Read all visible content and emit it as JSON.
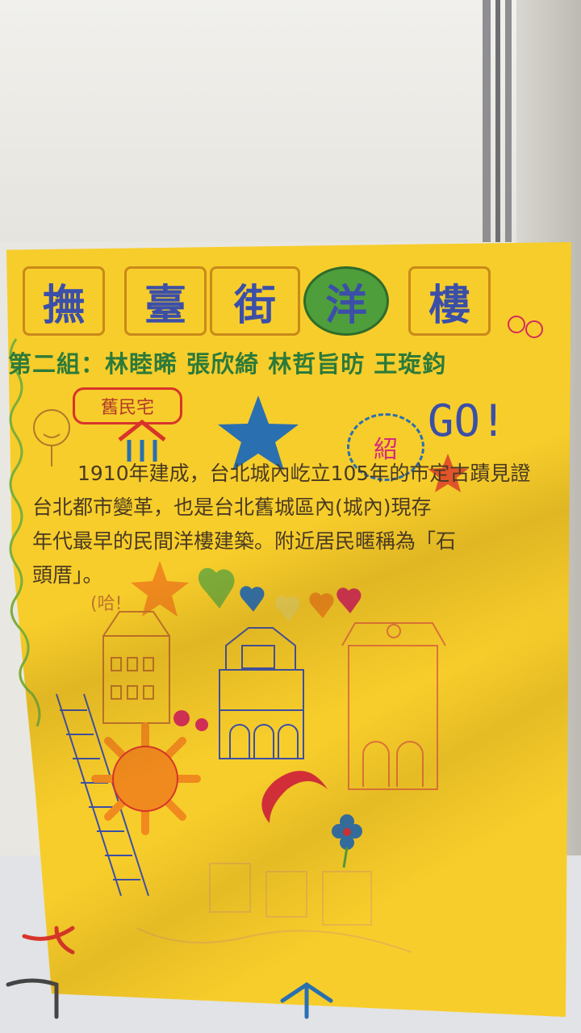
{
  "poster": {
    "title_chars": [
      "撫",
      "臺",
      "街",
      "洋",
      "樓"
    ],
    "group_line": "第二組：林睦晞 張欣綺 林哲旨昉 王琁鈞",
    "tag": "舊民宅",
    "cloud_label": "紹",
    "go_text": "GO!",
    "ha_label": "(哈!",
    "body_lines": [
      "1910年建成，台北城內屹立105年的市定古蹟見證",
      "台北都市變革，也是台北舊城區內(城內)現存",
      "年代最早的民間洋樓建築。附近居民暱稱為「石",
      "頭厝」。"
    ]
  },
  "colors": {
    "poster_yellow": "#f7cd2b",
    "title_blue": "#3b4fa8",
    "group_green": "#2c7a3a",
    "star_blue": "#2a6fb0",
    "sun_orange": "#f08a1e",
    "moon_red": "#d42d3a"
  }
}
